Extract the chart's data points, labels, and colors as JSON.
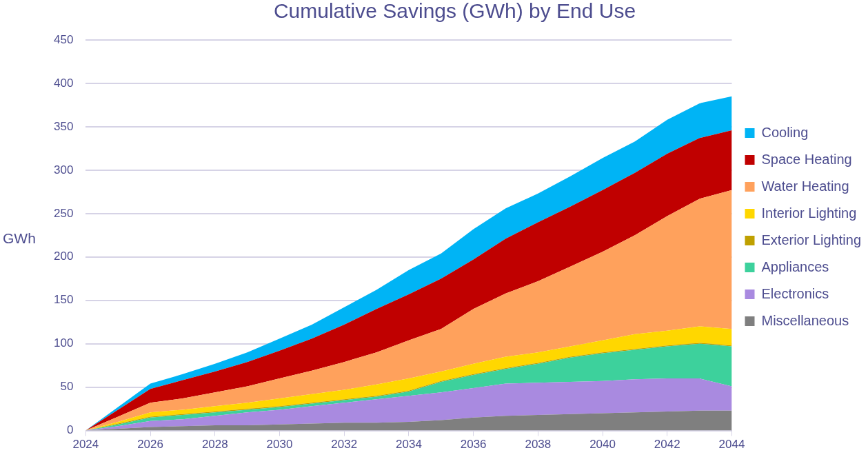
{
  "chart_data": {
    "type": "area",
    "title": "Cumulative Savings (GWh) by End Use",
    "ylabel": "GWh",
    "stacked": true,
    "x": [
      2024,
      2025,
      2026,
      2027,
      2028,
      2029,
      2030,
      2031,
      2032,
      2033,
      2034,
      2035,
      2036,
      2037,
      2038,
      2039,
      2040,
      2041,
      2042,
      2043,
      2044
    ],
    "xlim": [
      2024,
      2044
    ],
    "xticks": [
      2024,
      2026,
      2028,
      2030,
      2032,
      2034,
      2036,
      2038,
      2040,
      2042,
      2044
    ],
    "ylim": [
      0,
      450
    ],
    "yticks": [
      0,
      50,
      100,
      150,
      200,
      250,
      300,
      350,
      400,
      450
    ],
    "grid": "y",
    "legend": "right",
    "series": [
      {
        "name": "Miscellaneous",
        "color": "#7f7f7f",
        "values": [
          0,
          2,
          4,
          5,
          6,
          6,
          7,
          8,
          9,
          9,
          10,
          12,
          15,
          17,
          18,
          19,
          20,
          21,
          22,
          23,
          23
        ]
      },
      {
        "name": "Electronics",
        "color": "#a98ae0",
        "values": [
          0,
          3,
          7,
          8,
          11,
          15,
          17,
          20,
          23,
          27,
          30,
          32,
          34,
          37,
          37,
          37,
          37,
          38,
          38,
          37,
          28
        ]
      },
      {
        "name": "Appliances",
        "color": "#3dd19c",
        "values": [
          0,
          2,
          4,
          5,
          4,
          3,
          3,
          3,
          3,
          3,
          5,
          12,
          15,
          17,
          22,
          28,
          32,
          34,
          37,
          40,
          46
        ]
      },
      {
        "name": "Exterior Lighting",
        "color": "#bfa000",
        "values": [
          0,
          1,
          1,
          1,
          1,
          1,
          1,
          1,
          1,
          1,
          1,
          1,
          1,
          1,
          1,
          1,
          1,
          1,
          1,
          1,
          1
        ]
      },
      {
        "name": "Interior Lighting",
        "color": "#ffd700",
        "values": [
          0,
          2,
          5,
          5,
          6,
          7,
          9,
          10,
          11,
          13,
          14,
          11,
          12,
          13,
          12,
          12,
          14,
          17,
          17,
          19,
          19
        ]
      },
      {
        "name": "Water Heating",
        "color": "#ffa15c",
        "values": [
          0,
          6,
          11,
          13,
          16,
          19,
          23,
          27,
          32,
          37,
          44,
          49,
          63,
          73,
          82,
          92,
          102,
          114,
          132,
          147,
          160
        ]
      },
      {
        "name": "Space Heating",
        "color": "#c00000",
        "values": [
          0,
          8,
          16,
          21,
          24,
          28,
          32,
          37,
          43,
          50,
          53,
          58,
          57,
          63,
          68,
          69,
          71,
          72,
          72,
          70,
          69
        ]
      },
      {
        "name": "Cooling",
        "color": "#00b4f5",
        "values": [
          0,
          3,
          6,
          7,
          9,
          11,
          14,
          16,
          20,
          22,
          28,
          29,
          35,
          35,
          33,
          35,
          37,
          36,
          39,
          40,
          39
        ]
      }
    ]
  }
}
